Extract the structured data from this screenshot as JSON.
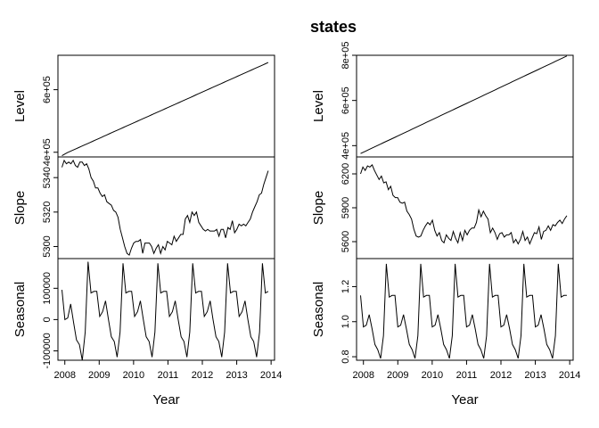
{
  "title": "states",
  "colors": {
    "line": "#000000",
    "frame": "#000000",
    "background": "#ffffff"
  },
  "chart_data": [
    {
      "type": "line",
      "xlabel": "Year",
      "xlim": [
        2007.8,
        2014.1
      ],
      "x_ticks": [
        2008,
        2009,
        2010,
        2011,
        2012,
        2013,
        2014
      ],
      "x_tick_labels": [
        "2008",
        "2009",
        "2010",
        "2011",
        "2012",
        "2013",
        "2014"
      ],
      "panels": [
        {
          "ylabel": "Level",
          "ylim": [
            385000,
            710000
          ],
          "y_ticks": [
            400000,
            600000
          ],
          "y_tick_labels": [
            "4e+05",
            "6e+05"
          ],
          "series": {
            "start": 2007.917,
            "end": 2013.917,
            "values": [
              389000,
              394000,
              399000,
              403000,
              407000,
              411000,
              415000,
              419000,
              423000,
              427000,
              431000,
              435000,
              439000,
              443000,
              447000,
              451000,
              455000,
              459000,
              463000,
              467000,
              471000,
              475000,
              479000,
              483000,
              487000,
              491000,
              495000,
              499000,
              503000,
              507000,
              511000,
              515000,
              519000,
              523000,
              527000,
              531000,
              535000,
              539000,
              543000,
              547000,
              551000,
              555000,
              559000,
              563000,
              567000,
              571000,
              575000,
              579000,
              583000,
              587000,
              591000,
              595000,
              599000,
              603000,
              607000,
              611000,
              615000,
              619000,
              623000,
              627000,
              631000,
              635000,
              639000,
              643000,
              647000,
              651000,
              655000,
              659000,
              663000,
              667000,
              671000,
              675000,
              679000,
              683000,
              687000
            ]
          }
        },
        {
          "ylabel": "Slope",
          "ylim": [
            5293,
            5352
          ],
          "y_ticks": [
            5300,
            5320,
            5340
          ],
          "y_tick_labels": [
            "5300",
            "5320",
            "5340"
          ],
          "series": {
            "start": 2007.917,
            "end": 2013.917,
            "values": [
              5346,
              5350,
              5348,
              5349,
              5348,
              5350,
              5347,
              5346,
              5349,
              5349,
              5347,
              5348,
              5345,
              5340,
              5338,
              5334,
              5334,
              5331,
              5329,
              5330,
              5326,
              5325,
              5324,
              5321,
              5320,
              5317,
              5310,
              5305,
              5300,
              5296,
              5295,
              5299,
              5302,
              5303,
              5303,
              5304,
              5296,
              5302,
              5302,
              5302,
              5300,
              5296,
              5299,
              5301,
              5296,
              5300,
              5298,
              5303,
              5302,
              5301,
              5306,
              5303,
              5305,
              5307,
              5307,
              5316,
              5318,
              5314,
              5320,
              5318,
              5320,
              5314,
              5312,
              5310,
              5309,
              5310,
              5309,
              5309,
              5309,
              5310,
              5306,
              5310,
              5310,
              5305,
              5311,
              5310,
              5315,
              5308,
              5310,
              5313,
              5312,
              5313,
              5312,
              5314,
              5316,
              5320,
              5323,
              5326,
              5330,
              5331,
              5336,
              5340,
              5344
            ]
          }
        },
        {
          "ylabel": "Seasonal",
          "ylim": [
            -130000,
            195000
          ],
          "y_ticks": [
            -100000,
            0,
            100000
          ],
          "y_tick_labels": [
            "-100000",
            "0",
            "100000"
          ],
          "series": {
            "start": 2007.917,
            "end": 2013.917,
            "values": [
              95000,
              0,
              5000,
              50000,
              -10000,
              -65000,
              -80000,
              -130000,
              -40000,
              185000,
              85000,
              90000,
              90000,
              10000,
              25000,
              60000,
              0,
              -55000,
              -70000,
              -120000,
              -40000,
              180000,
              85000,
              90000,
              90000,
              10000,
              25000,
              60000,
              0,
              -55000,
              -70000,
              -120000,
              -40000,
              180000,
              85000,
              90000,
              90000,
              10000,
              25000,
              60000,
              0,
              -55000,
              -70000,
              -120000,
              -40000,
              180000,
              85000,
              90000,
              90000,
              10000,
              25000,
              60000,
              0,
              -55000,
              -70000,
              -120000,
              -40000,
              180000,
              85000,
              90000,
              90000,
              10000,
              25000,
              60000,
              0,
              -55000,
              -70000,
              -120000,
              -40000,
              180000,
              85000,
              90000
            ]
          }
        }
      ]
    },
    {
      "type": "line",
      "xlabel": "Year",
      "xlim": [
        2007.8,
        2014.1
      ],
      "x_ticks": [
        2008,
        2009,
        2010,
        2011,
        2012,
        2013,
        2014
      ],
      "x_tick_labels": [
        "2008",
        "2009",
        "2010",
        "2011",
        "2012",
        "2013",
        "2014"
      ],
      "panels": [
        {
          "ylabel": "Level",
          "ylim": [
            350000,
            800000
          ],
          "y_ticks": [
            400000,
            600000,
            800000
          ],
          "y_tick_labels": [
            "4e+05",
            "6e+05",
            "8e+05"
          ],
          "series": {
            "start": 2007.917,
            "end": 2013.917,
            "values": [
              365000,
              371000,
              377000,
              383000,
              389000,
              395000,
              401000,
              407000,
              413000,
              419000,
              425000,
              431000,
              437000,
              443000,
              449000,
              455000,
              461000,
              467000,
              473000,
              479000,
              485000,
              491000,
              497000,
              503000,
              509000,
              515000,
              521000,
              527000,
              533000,
              539000,
              545000,
              551000,
              557000,
              563000,
              569000,
              575000,
              581000,
              587000,
              593000,
              599000,
              605000,
              611000,
              617000,
              623000,
              629000,
              635000,
              641000,
              647000,
              653000,
              659000,
              665000,
              671000,
              677000,
              683000,
              689000,
              695000,
              701000,
              707000,
              713000,
              719000,
              725000,
              731000,
              737000,
              743000,
              749000,
              755000,
              761000,
              767000,
              773000,
              779000,
              785000,
              791000,
              797000
            ]
          }
        },
        {
          "ylabel": "Slope",
          "ylim": [
            5450,
            6350
          ],
          "y_ticks": [
            5600,
            5900,
            6200
          ],
          "y_tick_labels": [
            "5600",
            "5900",
            "6200"
          ],
          "series": {
            "start": 2007.917,
            "end": 2013.917,
            "values": [
              6200,
              6260,
              6230,
              6270,
              6260,
              6280,
              6230,
              6190,
              6150,
              6180,
              6120,
              6130,
              6060,
              6090,
              6010,
              5990,
              5990,
              5950,
              5940,
              5950,
              5870,
              5840,
              5800,
              5710,
              5650,
              5640,
              5650,
              5700,
              5740,
              5770,
              5750,
              5790,
              5700,
              5650,
              5680,
              5610,
              5590,
              5660,
              5630,
              5610,
              5690,
              5630,
              5590,
              5680,
              5610,
              5700,
              5660,
              5700,
              5720,
              5720,
              5770,
              5880,
              5820,
              5870,
              5830,
              5800,
              5680,
              5720,
              5680,
              5620,
              5670,
              5680,
              5640,
              5660,
              5660,
              5680,
              5590,
              5620,
              5580,
              5620,
              5690,
              5610,
              5640,
              5580,
              5630,
              5680,
              5670,
              5730,
              5620,
              5690,
              5700,
              5740,
              5700,
              5750,
              5740,
              5770,
              5790,
              5760,
              5800,
              5830
            ]
          }
        },
        {
          "ylabel": "Seasonal",
          "ylim": [
            0.78,
            1.36
          ],
          "y_ticks": [
            0.8,
            1.0,
            1.2
          ],
          "y_tick_labels": [
            "0.8",
            "1.0",
            "1.2"
          ],
          "series": {
            "start": 2007.917,
            "end": 2013.917,
            "values": [
              1.15,
              0.97,
              0.98,
              1.04,
              0.96,
              0.87,
              0.84,
              0.79,
              0.92,
              1.33,
              1.14,
              1.15,
              1.15,
              0.97,
              0.98,
              1.04,
              0.96,
              0.87,
              0.84,
              0.79,
              0.92,
              1.33,
              1.14,
              1.15,
              1.15,
              0.97,
              0.98,
              1.04,
              0.96,
              0.87,
              0.84,
              0.79,
              0.92,
              1.33,
              1.14,
              1.15,
              1.15,
              0.97,
              0.98,
              1.04,
              0.96,
              0.87,
              0.84,
              0.79,
              0.92,
              1.33,
              1.14,
              1.15,
              1.15,
              0.97,
              0.98,
              1.04,
              0.96,
              0.87,
              0.84,
              0.79,
              0.92,
              1.33,
              1.14,
              1.15,
              1.15,
              0.97,
              0.98,
              1.04,
              0.96,
              0.87,
              0.84,
              0.79,
              0.92,
              1.33,
              1.14,
              1.15,
              1.15
            ]
          }
        }
      ]
    }
  ]
}
